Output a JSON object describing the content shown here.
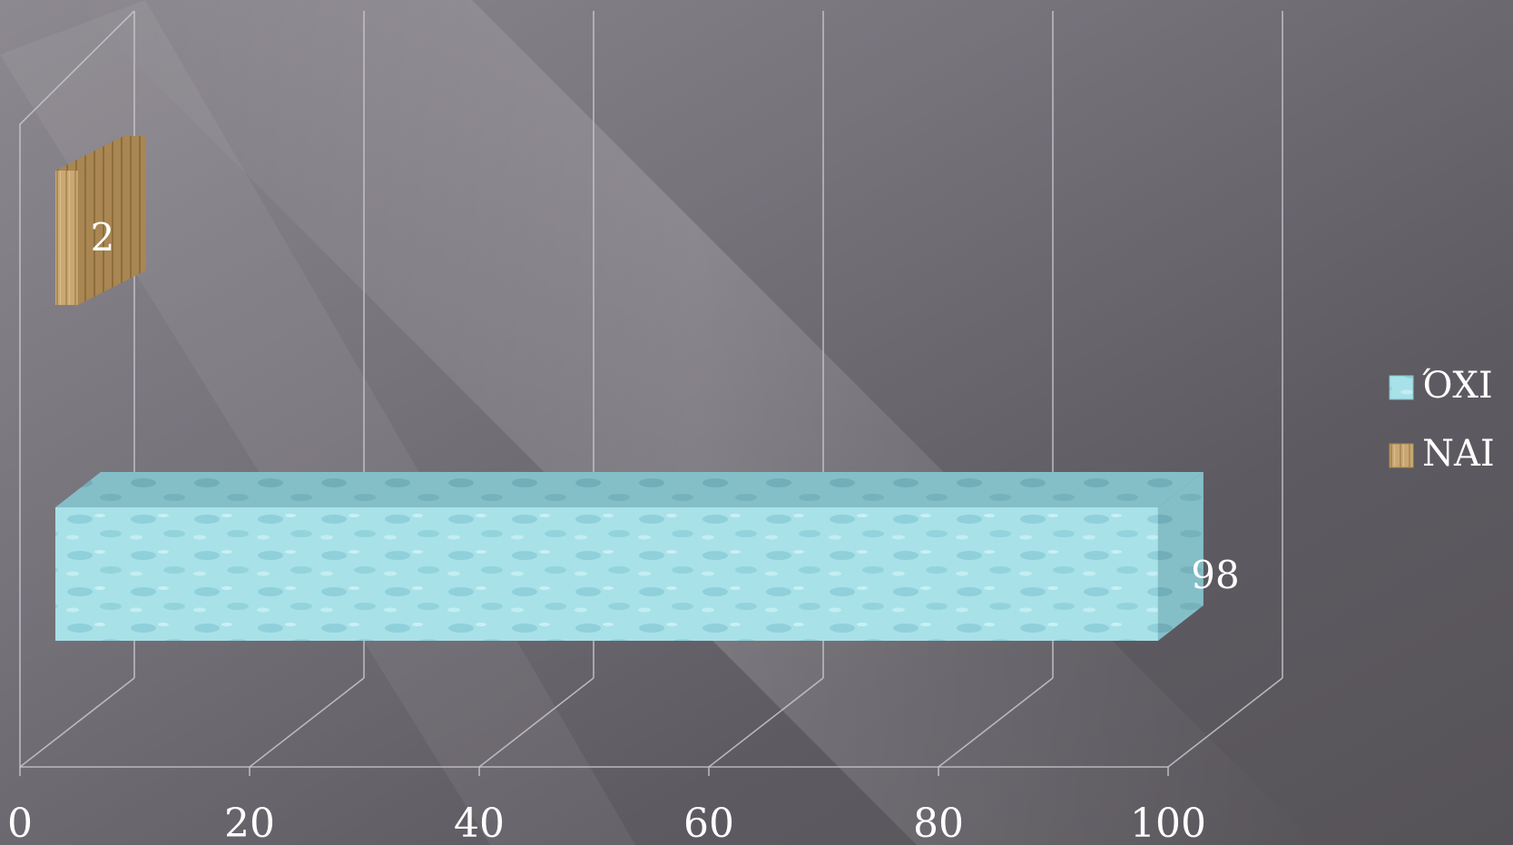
{
  "chart_data": {
    "type": "bar",
    "orientation": "horizontal",
    "three_d": true,
    "categories": [
      "",
      ""
    ],
    "series": [
      {
        "name": "ΌΧΙ",
        "values": [
          98,
          null
        ],
        "color": "#a6dfe6"
      },
      {
        "name": "ΝΑΙ",
        "values": [
          null,
          2
        ],
        "color": "#c9a874"
      }
    ],
    "data_labels": [
      "98",
      "2"
    ],
    "xlim": [
      0,
      100
    ],
    "x_ticks": [
      "0",
      "20",
      "40",
      "60",
      "80",
      "100"
    ],
    "grid": true,
    "legend": "right",
    "title": "",
    "xlabel": "",
    "ylabel": ""
  },
  "colors": {
    "background": "#5f5c63",
    "grid": "#c9c6cd",
    "text": "#ffffff"
  }
}
